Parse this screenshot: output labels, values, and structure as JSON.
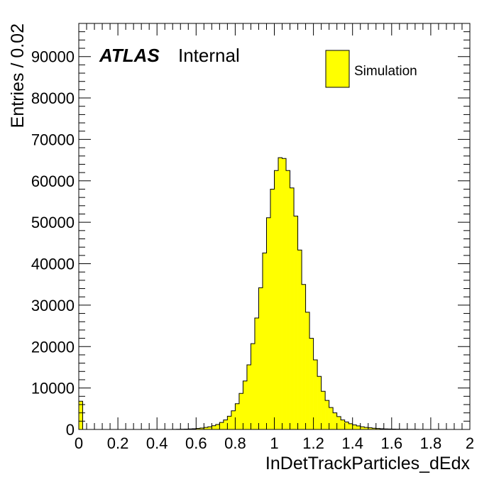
{
  "chart_data": {
    "type": "bar",
    "subtype": "histogram",
    "brand": "ATLAS",
    "status": "Internal",
    "xlabel": "InDetTrackParticles_dEdx",
    "ylabel": "Entries / 0.02",
    "xlim": [
      0,
      2
    ],
    "ylim": [
      0,
      98000
    ],
    "bin_width": 0.02,
    "x_ticks": [
      0,
      0.2,
      0.4,
      0.6,
      0.8,
      1,
      1.2,
      1.4,
      1.6,
      1.8,
      2
    ],
    "x_tick_labels": [
      "0",
      "0.2",
      "0.4",
      "0.6",
      "0.8",
      "1",
      "1.2",
      "1.4",
      "1.6",
      "1.8",
      "2"
    ],
    "y_ticks": [
      0,
      10000,
      20000,
      30000,
      40000,
      50000,
      60000,
      70000,
      80000,
      90000
    ],
    "y_tick_labels": [
      "0",
      "10000",
      "20000",
      "30000",
      "40000",
      "50000",
      "60000",
      "70000",
      "80000",
      "90000"
    ],
    "fill_color": "#ffff00",
    "line_color": "#000000",
    "legend": {
      "position": "top-right",
      "entries": [
        {
          "label": "Simulation",
          "color": "#ffff00"
        }
      ]
    },
    "series": [
      {
        "name": "Simulation",
        "x": [
          0.0,
          0.02,
          0.04,
          0.06,
          0.08,
          0.1,
          0.12,
          0.14,
          0.16,
          0.18,
          0.2,
          0.22,
          0.24,
          0.26,
          0.28,
          0.3,
          0.32,
          0.34,
          0.36,
          0.38,
          0.4,
          0.42,
          0.44,
          0.46,
          0.48,
          0.5,
          0.52,
          0.54,
          0.56,
          0.58,
          0.6,
          0.62,
          0.64,
          0.66,
          0.68,
          0.7,
          0.72,
          0.74,
          0.76,
          0.78,
          0.8,
          0.82,
          0.84,
          0.86,
          0.88,
          0.9,
          0.92,
          0.94,
          0.96,
          0.98,
          1.0,
          1.02,
          1.04,
          1.06,
          1.08,
          1.1,
          1.12,
          1.14,
          1.16,
          1.18,
          1.2,
          1.22,
          1.24,
          1.26,
          1.28,
          1.3,
          1.32,
          1.34,
          1.36,
          1.38,
          1.4,
          1.42,
          1.44,
          1.46,
          1.48,
          1.5,
          1.52,
          1.54,
          1.56,
          1.58,
          1.6,
          1.62,
          1.64,
          1.66,
          1.68,
          1.7,
          1.72,
          1.74,
          1.76,
          1.78,
          1.8,
          1.82,
          1.84,
          1.86,
          1.88,
          1.9,
          1.92,
          1.94,
          1.96,
          1.98
        ],
        "values": [
          6800,
          0,
          0,
          0,
          0,
          0,
          0,
          0,
          0,
          0,
          0,
          0,
          0,
          0,
          0,
          0,
          0,
          0,
          0,
          0,
          0,
          0,
          0,
          0,
          20,
          40,
          60,
          90,
          130,
          180,
          250,
          350,
          500,
          650,
          900,
          1200,
          1700,
          2300,
          3200,
          4500,
          6200,
          8700,
          11700,
          15600,
          20700,
          26900,
          34200,
          42600,
          51100,
          58000,
          62500,
          65600,
          65400,
          62500,
          58300,
          51500,
          43300,
          35000,
          28300,
          22000,
          16800,
          12800,
          9200,
          7000,
          5300,
          4000,
          3100,
          2300,
          1800,
          1400,
          1100,
          850,
          650,
          500,
          400,
          300,
          230,
          170,
          130,
          100,
          80,
          60,
          50,
          40,
          30,
          20,
          15,
          10,
          8,
          5,
          0,
          0,
          0,
          0,
          0,
          0,
          0,
          0,
          0,
          0
        ]
      }
    ]
  }
}
